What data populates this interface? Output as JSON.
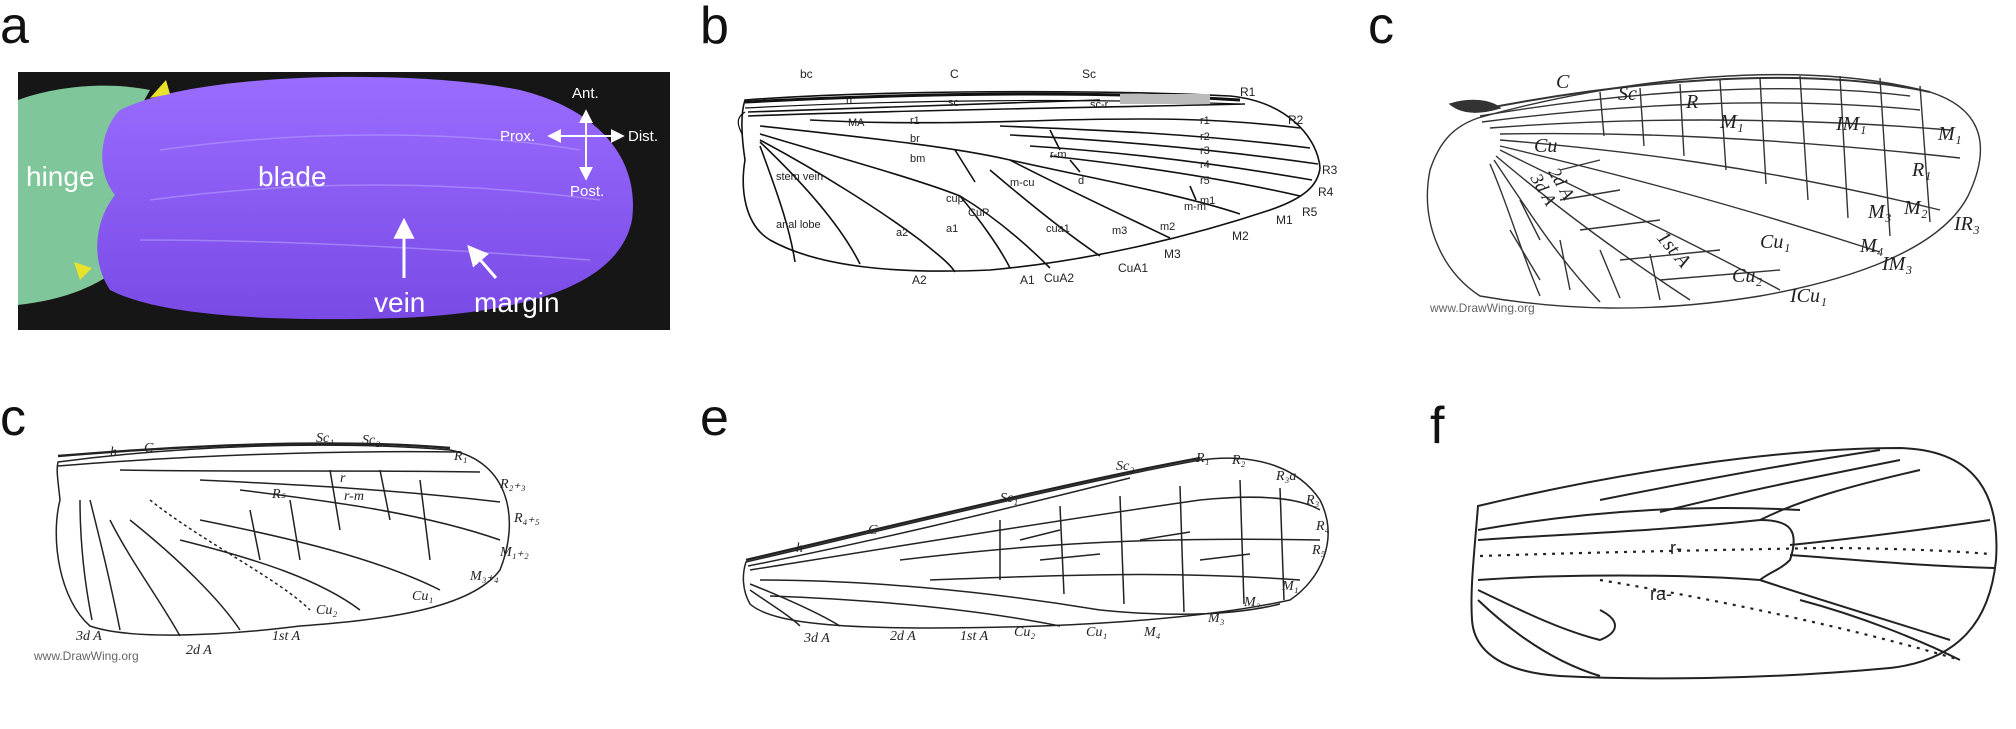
{
  "panels": {
    "a": {
      "letter": "a",
      "hinge": "hinge",
      "blade": "blade",
      "vein": "vein",
      "margin": "margin",
      "axes": {
        "ant": "Ant.",
        "post": "Post.",
        "prox": "Prox.",
        "dist": "Dist."
      },
      "colors": {
        "blade": "#8a5cf6",
        "hinge": "#7fc79a",
        "arrowhead": "#e8e22a",
        "background": "#0b0b0b"
      }
    },
    "b": {
      "letter": "b",
      "labels": {
        "bc": "bc",
        "C": "C",
        "Sc": "Sc",
        "h": "h",
        "sc": "sc",
        "sc_r": "sc-r",
        "R1": "R1",
        "R2": "R2",
        "R3": "R3",
        "R4": "R4",
        "R5": "R5",
        "r1": "r1",
        "r2": "r2",
        "r3": "r3",
        "r4": "r4",
        "r5": "r5",
        "MA": "MA",
        "br": "br",
        "bm": "bm",
        "r_m": "r-m",
        "m_cu": "m-cu",
        "d": "d",
        "m_m": "m-m",
        "m1": "m1",
        "m2": "m2",
        "m3": "m3",
        "M1": "M1",
        "M2": "M2",
        "M3": "M3",
        "stem_vein": "stem vein",
        "cup": "cup",
        "CuP": "CuP",
        "cua1": "cua1",
        "CuA1": "CuA1",
        "CuA2": "CuA2",
        "anal_lobe": "anal lobe",
        "a1": "a1",
        "a2": "a2",
        "A1": "A1",
        "A2": "A2"
      }
    },
    "c1": {
      "letter": "c",
      "labels": {
        "C": "C",
        "Sc": "Sc",
        "R": "R",
        "M1": "M₁",
        "IM1": "IM₁",
        "M1b": "M₁",
        "R1": "R₁",
        "M2": "M₂",
        "M3": "M₃",
        "IR": "IR₃",
        "IM3": "IM₃",
        "Cu": "Cu",
        "Cu1": "Cu₁",
        "Cu2": "Cu₂",
        "ICu1": "ICu₁",
        "A2": "2d A",
        "A3": "3d A",
        "A1": "1st A",
        "M4": "M₄"
      },
      "watermark": "www.DrawWing.org"
    },
    "c2": {
      "letter": "c",
      "labels": {
        "h": "h",
        "C": "C",
        "Sc1": "Sc₁",
        "Sc2": "Sc₂",
        "R1": "R₁",
        "R23": "R₂₊₃",
        "R45": "R₄₊₅",
        "Rs": "Rₛ",
        "r": "r",
        "r_m": "r-m",
        "M12": "M₁₊₂",
        "M34": "M₃₊₄",
        "Cu1": "Cu₁",
        "Cu2": "Cu₂",
        "A1": "1st A",
        "A2": "2d A",
        "A3": "3d A"
      },
      "watermark": "www.DrawWing.org"
    },
    "e": {
      "letter": "e",
      "labels": {
        "h": "h",
        "C": "C",
        "Sc1": "Sc₁",
        "Sc2": "Sc₂",
        "R1": "R₁",
        "R2": "R₂",
        "R3a": "R₃a",
        "R3": "R₃",
        "R4": "R₄",
        "R5": "R₅",
        "M1": "M₁",
        "M2": "M₂",
        "M3": "M₃",
        "M4": "M₄",
        "Cu1": "Cu₁",
        "Cu2": "Cu₂",
        "A1": "1st A",
        "A2": "2d A",
        "A3": "3d A"
      }
    },
    "f": {
      "letter": "f",
      "labels": {
        "r": "r-",
        "ra": "ra-"
      }
    }
  }
}
